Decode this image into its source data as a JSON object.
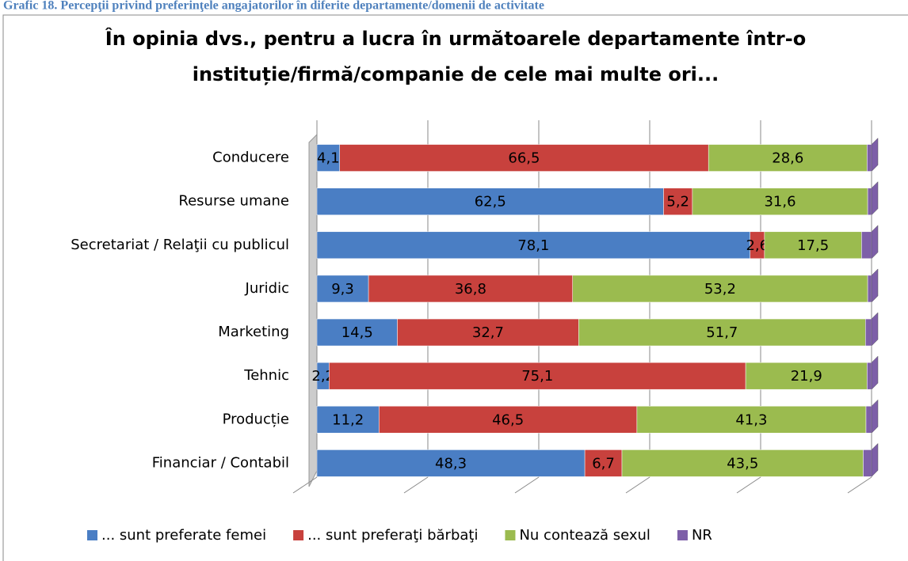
{
  "caption": "Grafic 18. Percepţii privind preferinţele angajatorilor în diferite departamente/domenii de activitate",
  "chart_data": {
    "type": "stacked_bar_horizontal",
    "title": "În opinia dvs., pentru a lucra în următoarele departamente într-o instituție/firmă/companie de cele mai multe ori...",
    "categories": [
      "Conducere",
      "Resurse umane",
      "Secretariat / Relaţii cu publicul",
      "Juridic",
      "Marketing",
      "Tehnic",
      "Producție",
      "Financiar / Contabil"
    ],
    "series": [
      {
        "name": "... sunt preferate femei",
        "color": "#4a7ec4",
        "values": [
          4.1,
          62.5,
          78.1,
          9.3,
          14.5,
          2.2,
          11.2,
          48.3
        ],
        "value_labels": [
          "4,1",
          "62,5",
          "78,1",
          "9,3",
          "14,5",
          "2,2",
          "11,2",
          "48,3"
        ]
      },
      {
        "name": "... sunt preferaţi bărbaţi",
        "color": "#c8413d",
        "values": [
          66.5,
          5.2,
          2.6,
          36.8,
          32.7,
          75.1,
          46.5,
          6.7
        ],
        "value_labels": [
          "66,5",
          "5,2",
          "2,6",
          "36,8",
          "32,7",
          "75,1",
          "46,5",
          "6,7"
        ]
      },
      {
        "name": "Nu contează sexul",
        "color": "#9bbb4f",
        "values": [
          28.6,
          31.6,
          17.5,
          53.2,
          51.7,
          21.9,
          41.3,
          43.5
        ],
        "value_labels": [
          "28,6",
          "31,6",
          "17,5",
          "53,2",
          "51,7",
          "21,9",
          "41,3",
          "43,5"
        ]
      },
      {
        "name": "NR",
        "color": "#7d5fa8",
        "values": [
          0.8,
          0.7,
          1.8,
          0.7,
          1.1,
          0.8,
          1.0,
          1.5
        ]
      }
    ],
    "xlim": [
      0,
      100
    ],
    "xticks": [
      0,
      20,
      40,
      60,
      80,
      100
    ],
    "grid": true,
    "legend": "bottom"
  }
}
